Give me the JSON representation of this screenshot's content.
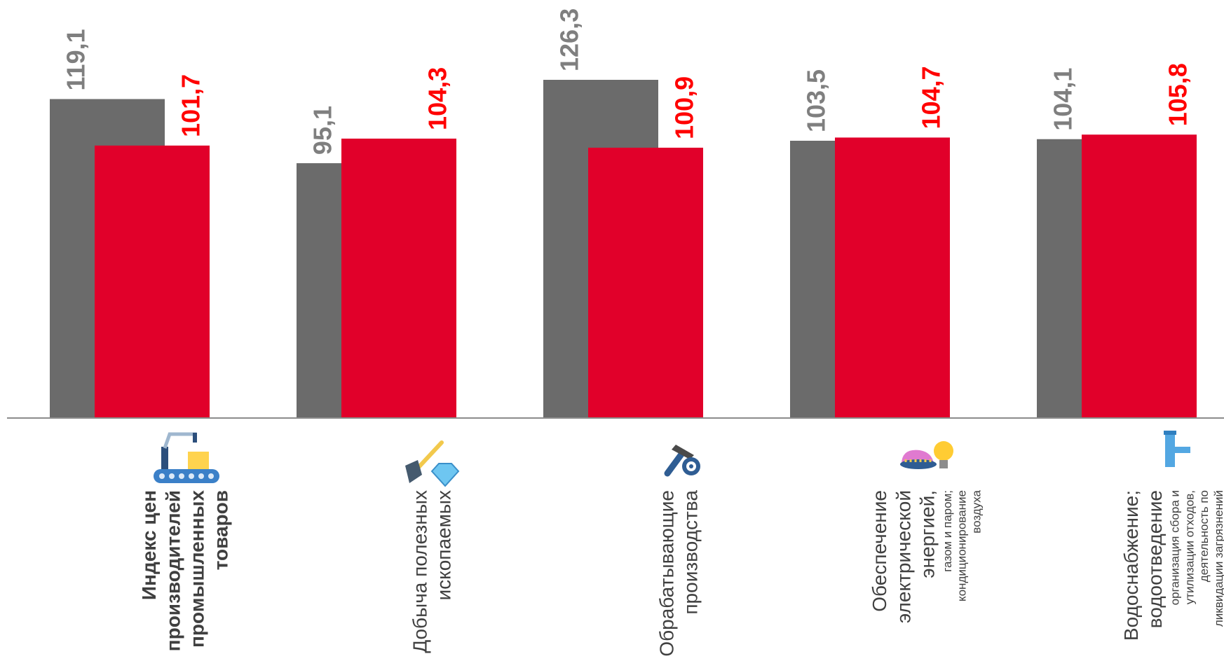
{
  "chart_data": {
    "type": "bar",
    "categories": [
      {
        "lines": [
          "Индекс цен",
          "производителей",
          "промышленных",
          "товаров"
        ],
        "small": [],
        "bold": true,
        "icon": "factory-robot-icon"
      },
      {
        "lines": [
          "Добыча полезных",
          "ископаемых"
        ],
        "small": [],
        "bold": false,
        "icon": "shovel-diamond-icon"
      },
      {
        "lines": [
          "Обрабатывающие",
          "производства"
        ],
        "small": [],
        "bold": false,
        "icon": "hammer-gear-icon"
      },
      {
        "lines": [
          "Обеспечение",
          "электрической",
          "энергией,"
        ],
        "small": [
          "газом и паром;",
          "кондиционирование",
          "воздуха"
        ],
        "bold": false,
        "icon": "gas-lightbulb-icon"
      },
      {
        "lines": [
          "Водоснабжение;",
          "водоотведение"
        ],
        "small": [
          "организация сбора и",
          "утилизации отходов,",
          "деятельность по",
          "ликвидации загрязнений"
        ],
        "bold": false,
        "icon": "water-pipe-icon"
      }
    ],
    "series": [
      {
        "values": [
          119.1,
          95.1,
          126.3,
          103.5,
          104.1
        ],
        "labels": [
          "119,1",
          "95,1",
          "126,3",
          "103,5",
          "104,1"
        ],
        "color": "#6b6b6b",
        "label_color": "#7f7f7f"
      },
      {
        "values": [
          101.7,
          104.3,
          100.9,
          104.7,
          105.8
        ],
        "labels": [
          "101,7",
          "104,3",
          "100,9",
          "104,7",
          "105,8"
        ],
        "color": "#e1002a",
        "label_color": "#ff0000"
      }
    ],
    "ylim": [
      0,
      126.3
    ],
    "grid": false,
    "legend": "none",
    "title": "",
    "xlabel": "",
    "ylabel": ""
  }
}
